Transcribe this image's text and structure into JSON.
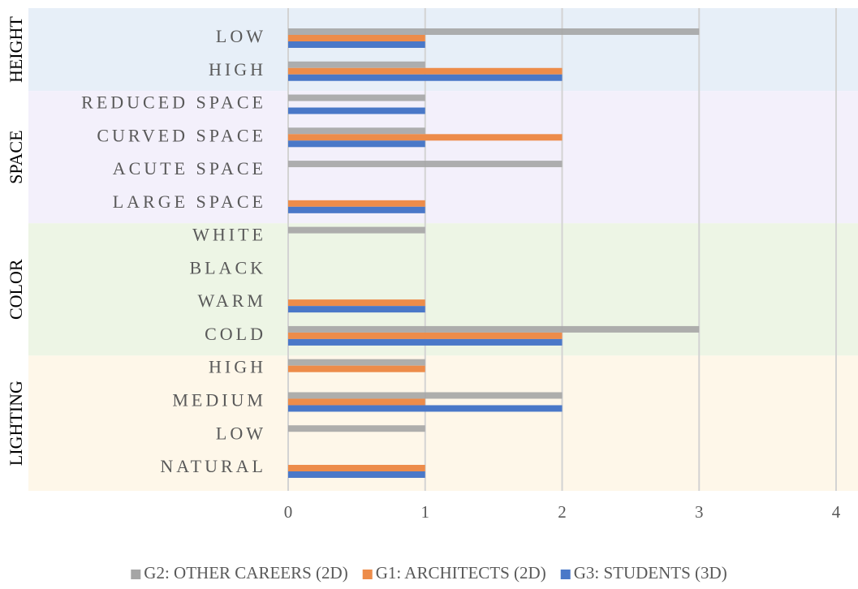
{
  "chart_data": {
    "type": "bar",
    "orientation": "horizontal",
    "groups": [
      {
        "label": "HEIGHT",
        "categories": [
          "LOW",
          "HIGH"
        ],
        "background": "#e7eff8"
      },
      {
        "label": "SPACE",
        "categories": [
          "REDUCED SPACE",
          "CURVED SPACE",
          "ACUTE SPACE",
          "LARGE SPACE"
        ],
        "background": "#f3f0fb"
      },
      {
        "label": "COLOR",
        "categories": [
          "WHITE",
          "BLACK",
          "WARM",
          "COLD"
        ],
        "background": "#edf5e5"
      },
      {
        "label": "LIGHTING",
        "categories": [
          "HIGH",
          "MEDIUM",
          "LOW",
          "NATURAL"
        ],
        "background": "#fef7e9"
      }
    ],
    "series": [
      {
        "name": "G2: OTHER CAREERS (2D)",
        "color": "#a5a5a5",
        "values": [
          3,
          1,
          1,
          1,
          2,
          0,
          1,
          0,
          0,
          3,
          1,
          2,
          1,
          0
        ]
      },
      {
        "name": "G1: ARCHITECTS (2D)",
        "color": "#ed8c4a",
        "values": [
          1,
          2,
          0,
          2,
          0,
          1,
          0,
          0,
          1,
          2,
          1,
          1,
          0,
          1
        ]
      },
      {
        "name": "G3: STUDENTS (3D)",
        "color": "#4a78c8",
        "values": [
          1,
          2,
          1,
          1,
          0,
          1,
          0,
          0,
          1,
          2,
          0,
          2,
          0,
          1
        ]
      }
    ],
    "xlim": [
      0,
      4
    ],
    "xticks": [
      0,
      1,
      2,
      3,
      4
    ],
    "grid": true,
    "legend": "bottom"
  }
}
